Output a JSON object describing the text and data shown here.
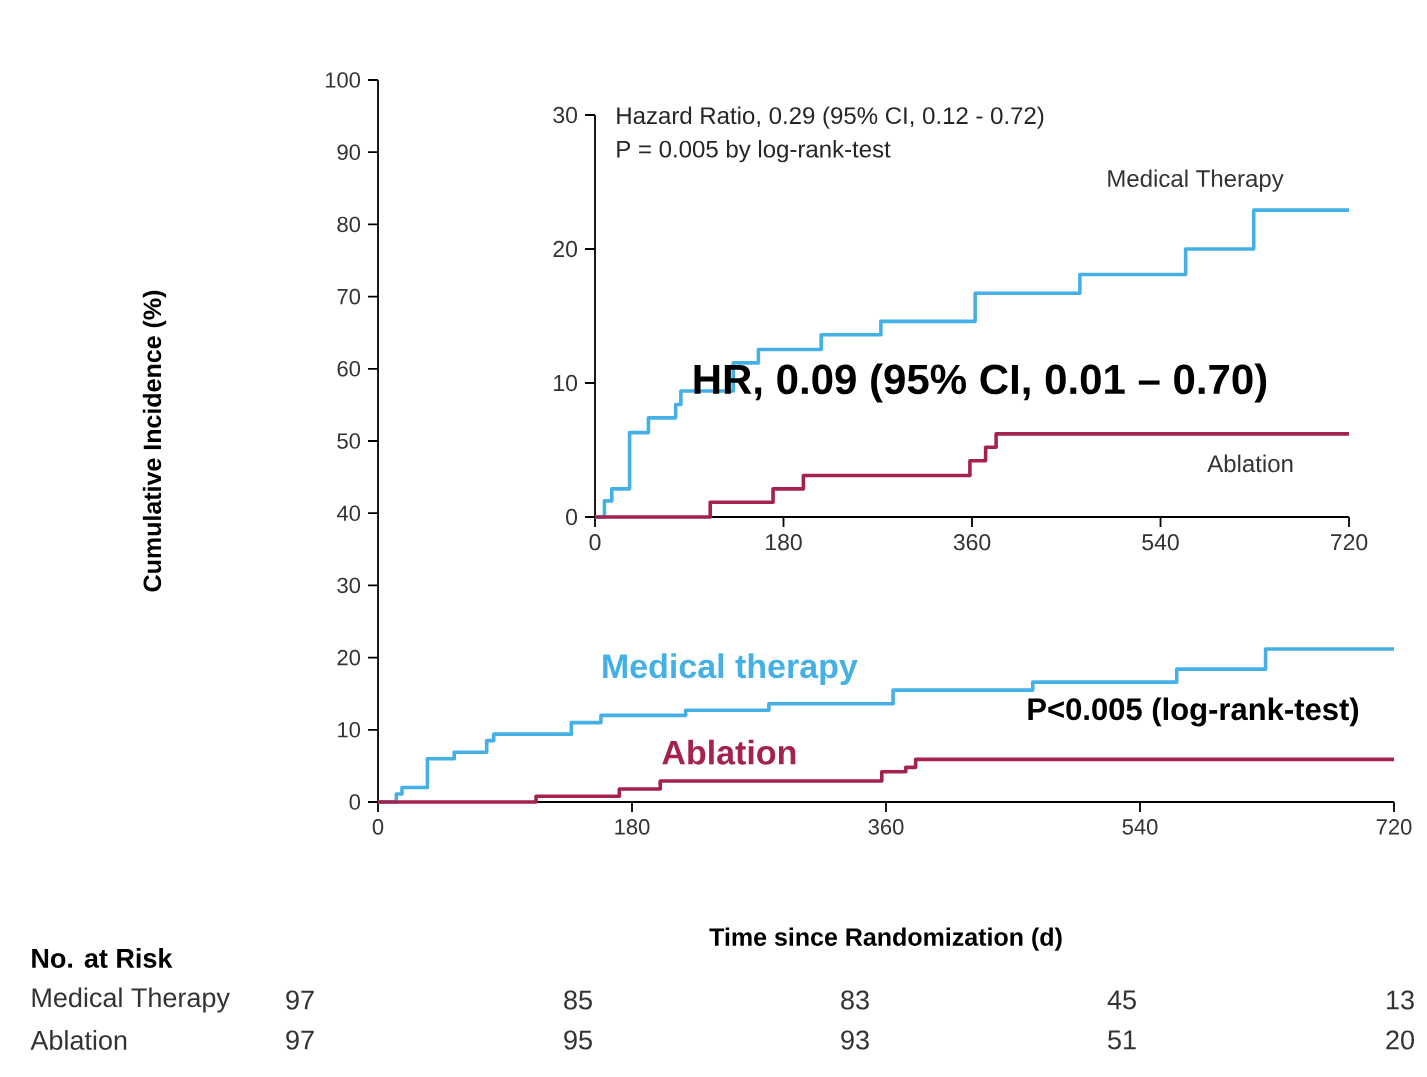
{
  "chart_data": [
    {
      "type": "step",
      "xlabel": "Time since Randomization (d)",
      "ylabel": "Cumulative Incidence (%)",
      "xlim": [
        0,
        720
      ],
      "xticks": [
        0,
        180,
        360,
        540,
        720
      ],
      "ylim": [
        0,
        100
      ],
      "yticks": [
        0,
        10,
        20,
        30,
        40,
        50,
        60,
        70,
        80,
        90,
        100
      ],
      "series": [
        {
          "name": "Medical therapy",
          "color": "#45b0e5",
          "x": [
            0,
            13,
            17,
            35,
            54,
            77,
            82,
            137,
            158,
            218,
            277,
            365,
            464,
            566,
            629,
            720
          ],
          "values": [
            0,
            1.1,
            2.0,
            6.0,
            6.9,
            8.5,
            9.4,
            11.0,
            12.0,
            12.7,
            13.6,
            15.5,
            16.6,
            18.4,
            21.2,
            21.2
          ]
        },
        {
          "name": "Ablation",
          "color": "#a3224f",
          "x": [
            0,
            112,
            171,
            200,
            357,
            374,
            381,
            720
          ],
          "values": [
            0,
            0.8,
            1.8,
            2.9,
            4.2,
            4.8,
            5.9,
            5.9
          ]
        }
      ],
      "annotations": [
        "P<0.005 (log-rank-test)",
        "HR, 0.09 (95% CI, 0.01 – 0.70)",
        "No. at Risk",
        "Medical Therapy",
        "97",
        "85",
        "83",
        "45",
        "13",
        "Ablation",
        "97",
        "95",
        "93",
        "51",
        "20"
      ]
    },
    {
      "type": "step",
      "xlim": [
        0,
        720
      ],
      "xticks": [
        0,
        180,
        360,
        540,
        720
      ],
      "ylim": [
        0,
        30
      ],
      "yticks": [
        0,
        10,
        20,
        30
      ],
      "series": [
        {
          "name": "Medical Therapy",
          "color": "#45b0e5",
          "x": [
            0,
            9,
            16,
            33,
            51,
            77,
            82,
            132,
            156,
            216,
            273,
            363,
            463,
            564,
            629,
            720
          ],
          "values": [
            0,
            1.2,
            2.1,
            6.3,
            7.4,
            8.4,
            9.4,
            11.5,
            12.5,
            13.6,
            14.6,
            16.7,
            18.1,
            20.0,
            22.9,
            22.9
          ]
        },
        {
          "name": "Ablation",
          "color": "#a3224f",
          "x": [
            0,
            110,
            170,
            199,
            358,
            373,
            383,
            720
          ],
          "values": [
            0,
            1.1,
            2.1,
            3.1,
            4.2,
            5.2,
            6.2,
            6.2
          ]
        }
      ],
      "annotations": [
        "Hazard Ratio, 0.29 (95% CI, 0.12 - 0.72)",
        "P = 0.005 by log-rank-test"
      ]
    }
  ]
}
